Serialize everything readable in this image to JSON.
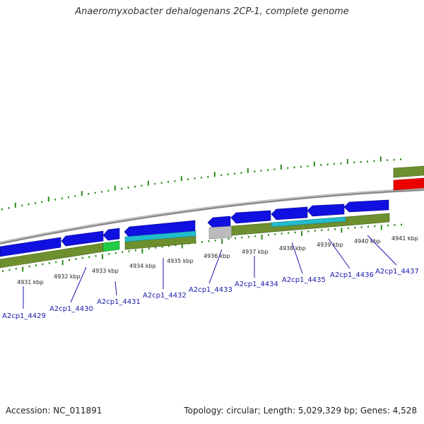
{
  "title": "Anaeromyxobacter dehalogenans 2CP-1, complete genome",
  "footer": {
    "accession": "Accession: NC_011891",
    "topology": "Topology: circular; Length: 5,029,329 bp; Genes: 4,528"
  },
  "colors": {
    "backbone": "#8a8a8a",
    "gene_strand": "#1010e0",
    "cds_track": "#6e8f2e",
    "rna_track": "#22bbcc",
    "misc_feature": "#22cc44",
    "pseudo": "#bbbbbb",
    "highlight": "#ee0000",
    "tick": "#2a8a1a",
    "label_line": "#1a1aaa"
  },
  "kbp_labels": [
    "4931 kbp",
    "4932 kbp",
    "4933 kbp",
    "4934 kbp",
    "4935 kbp",
    "4936 kbp",
    "4937 kbp",
    "4938 kbp",
    "4939 kbp",
    "4940 kbp",
    "4941 kbp"
  ],
  "gene_labels": [
    "A2cp1_4429",
    "A2cp1_4430",
    "A2cp1_4431",
    "A2cp1_4432",
    "A2cp1_4433",
    "A2cp1_4434",
    "A2cp1_4435",
    "A2cp1_4436",
    "A2cp1_4437"
  ]
}
